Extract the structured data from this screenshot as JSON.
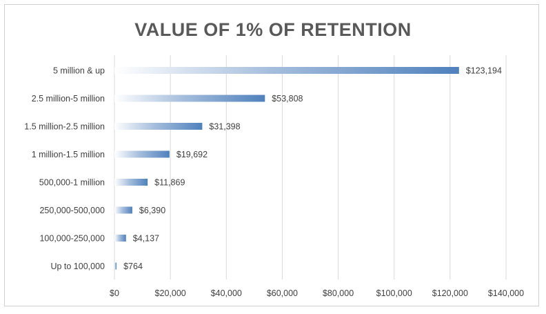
{
  "chart_data": {
    "type": "bar",
    "orientation": "horizontal",
    "title": "VALUE OF 1% OF RETENTION",
    "categories": [
      "5 million & up",
      "2.5 million-5 million",
      "1.5 million-2.5 million",
      "1 million-1.5 million",
      "500,000-1 million",
      "250,000-500,000",
      "100,000-250,000",
      "Up to 100,000"
    ],
    "values": [
      123194,
      53808,
      31398,
      19692,
      11869,
      6390,
      4137,
      764
    ],
    "data_labels": [
      "$123,194",
      "$53,808",
      "$31,398",
      "$19,692",
      "$11,869",
      "$6,390",
      "$4,137",
      "$764"
    ],
    "xlim": [
      0,
      140000
    ],
    "x_ticks": [
      0,
      20000,
      40000,
      60000,
      80000,
      100000,
      120000,
      140000
    ],
    "x_tick_labels": [
      "$0",
      "$20,000",
      "$40,000",
      "$60,000",
      "$80,000",
      "$100,000",
      "$120,000",
      "$140,000"
    ],
    "grid": "vertical",
    "legend": "none",
    "colors": {
      "bar": "#4f81bd",
      "bar_fade": "#ffffff",
      "grid": "#d9d9d9",
      "text": "#404040",
      "title": "#595959"
    }
  }
}
